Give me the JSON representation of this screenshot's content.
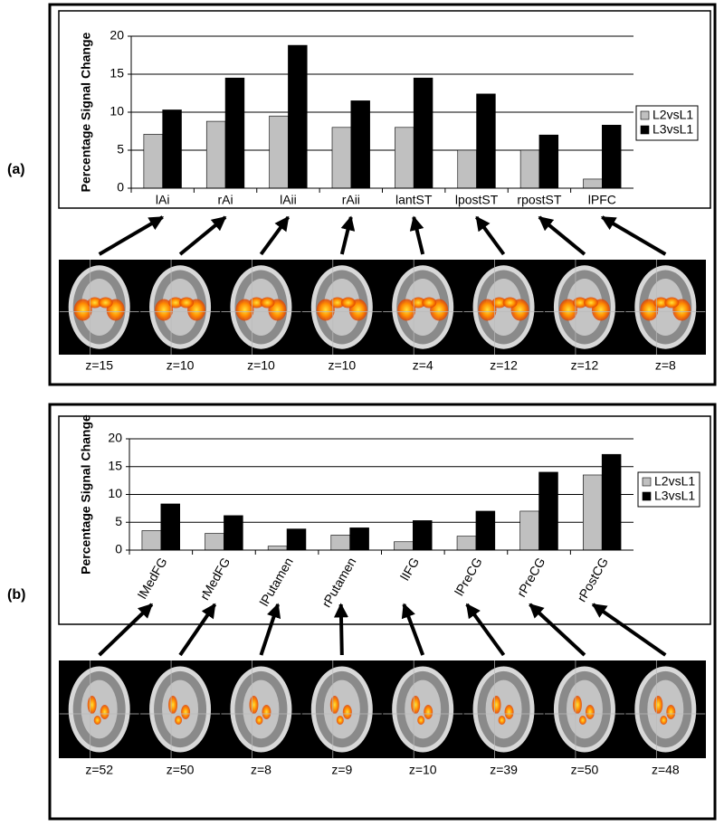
{
  "chart_data": [
    {
      "type": "bar",
      "y_axis_label": "Percentage Signal Change",
      "categories": [
        "lAi",
        "rAi",
        "lAii",
        "rAii",
        "lantST",
        "lpostST",
        "rpostST",
        "lPFC"
      ],
      "series": [
        {
          "name": "L2vsL1",
          "color": "#c0c0c0",
          "values": [
            7.1,
            8.8,
            9.5,
            8,
            8,
            5,
            5,
            1.2
          ]
        },
        {
          "name": "L3vsL1",
          "color": "#000000",
          "values": [
            10.3,
            14.5,
            18.8,
            11.5,
            14.5,
            12.4,
            7,
            8.3
          ]
        }
      ],
      "ylim": [
        0,
        20
      ],
      "yticks": [
        0,
        5,
        10,
        15,
        20
      ],
      "grid": true,
      "legend": "right"
    },
    {
      "type": "bar",
      "y_axis_label": "Percentage Signal Change",
      "categories": [
        "lMedFG",
        "rMedFG",
        "lPutamen",
        "rPutamen",
        "lIFG",
        "lPreCG",
        "rPreCG",
        "rPostCG"
      ],
      "series": [
        {
          "name": "L2vsL1",
          "color": "#c0c0c0",
          "values": [
            3.5,
            3,
            0.7,
            2.7,
            1.5,
            2.5,
            7,
            13.5
          ]
        },
        {
          "name": "L3vsL1",
          "color": "#000000",
          "values": [
            8.3,
            6.2,
            3.8,
            4,
            5.3,
            7,
            14,
            17.2
          ]
        }
      ],
      "ylim": [
        0,
        20
      ],
      "yticks": [
        0,
        5,
        10,
        15,
        20
      ],
      "grid": true,
      "legend": "right"
    }
  ],
  "panels": [
    {
      "label": "(a)",
      "slices": [
        "z=15",
        "z=10",
        "z=10",
        "z=10",
        "z=4",
        "z=12",
        "z=12",
        "z=8"
      ]
    },
    {
      "label": "(b)",
      "slices": [
        "z=52",
        "z=50",
        "z=8",
        "z=9",
        "z=10",
        "z=39",
        "z=50",
        "z=48"
      ]
    }
  ]
}
